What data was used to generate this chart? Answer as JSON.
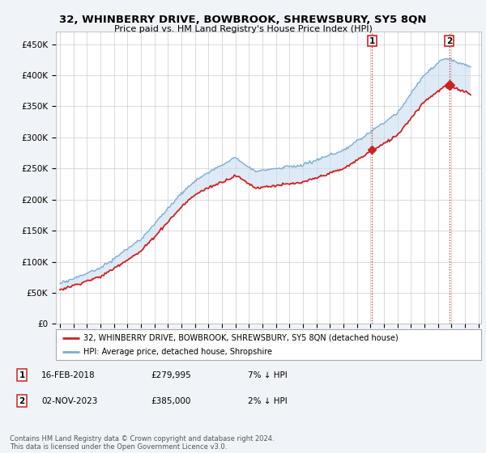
{
  "title": "32, WHINBERRY DRIVE, BOWBROOK, SHREWSBURY, SY5 8QN",
  "subtitle": "Price paid vs. HM Land Registry's House Price Index (HPI)",
  "ylabel_ticks": [
    "£0",
    "£50K",
    "£100K",
    "£150K",
    "£200K",
    "£250K",
    "£300K",
    "£350K",
    "£400K",
    "£450K"
  ],
  "ylabel_values": [
    0,
    50000,
    100000,
    150000,
    200000,
    250000,
    300000,
    350000,
    400000,
    450000
  ],
  "ylim": [
    0,
    470000
  ],
  "x_start_year": 1995,
  "x_end_year": 2026,
  "marker1_x": 2018.12,
  "marker1_price": 279995,
  "marker2_x": 2023.84,
  "marker2_price": 385000,
  "hpi_color": "#7badd4",
  "price_color": "#cc2222",
  "dashed_color": "#cc2222",
  "fill_color": "#c8ddf0",
  "legend_line1": "32, WHINBERRY DRIVE, BOWBROOK, SHREWSBURY, SY5 8QN (detached house)",
  "legend_line2": "HPI: Average price, detached house, Shropshire",
  "marker1_text1": "16-FEB-2018",
  "marker1_text2": "£279,995",
  "marker1_text3": "7% ↓ HPI",
  "marker2_text1": "02-NOV-2023",
  "marker2_text2": "£385,000",
  "marker2_text3": "2% ↓ HPI",
  "footnote": "Contains HM Land Registry data © Crown copyright and database right 2024.\nThis data is licensed under the Open Government Licence v3.0.",
  "background_color": "#f0f4f8",
  "plot_bg_color": "#ffffff",
  "grid_color": "#cccccc"
}
